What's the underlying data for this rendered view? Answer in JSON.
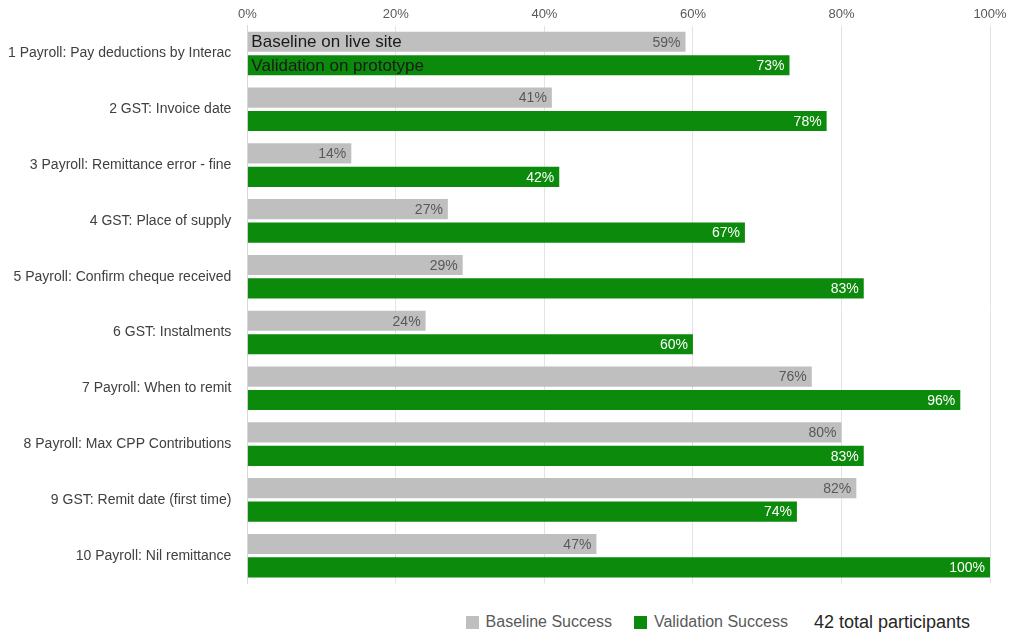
{
  "chart_data": {
    "type": "bar",
    "orientation": "horizontal",
    "categories": [
      "1 Payroll: Pay deductions by Interac",
      "2 GST: Invoice date",
      "3 Payroll: Remittance error - fine",
      "4 GST: Place of supply",
      "5 Payroll: Confirm cheque received",
      "6 GST: Instalments",
      "7 Payroll: When to remit",
      "8 Payroll: Max CPP Contributions",
      "9 GST: Remit date (first time)",
      "10 Payroll: Nil remittance"
    ],
    "series": [
      {
        "name": "Baseline Success",
        "color": "#bfbfbf",
        "values": [
          59,
          41,
          14,
          27,
          29,
          24,
          76,
          80,
          82,
          47
        ],
        "value_labels": [
          "59%",
          "41%",
          "14%",
          "27%",
          "29%",
          "24%",
          "76%",
          "80%",
          "82%",
          "47%"
        ]
      },
      {
        "name": "Validation Success",
        "color": "#0b8a0b",
        "values": [
          73,
          78,
          42,
          67,
          83,
          60,
          96,
          83,
          74,
          100
        ],
        "value_labels": [
          "73%",
          "78%",
          "42%",
          "67%",
          "83%",
          "60%",
          "96%",
          "83%",
          "74%",
          "100%"
        ]
      }
    ],
    "xlim": [
      0,
      100
    ],
    "xticks": [
      {
        "value": 0,
        "label": "0%"
      },
      {
        "value": 20,
        "label": "20%"
      },
      {
        "value": 40,
        "label": "40%"
      },
      {
        "value": 60,
        "label": "60%"
      },
      {
        "value": 80,
        "label": "80%"
      },
      {
        "value": 100,
        "label": "100%"
      }
    ],
    "grid": true,
    "legend": "bottom",
    "data_labels": true,
    "annotations": [
      "Baseline on live site",
      "Validation on prototype",
      "42 total participants"
    ]
  }
}
